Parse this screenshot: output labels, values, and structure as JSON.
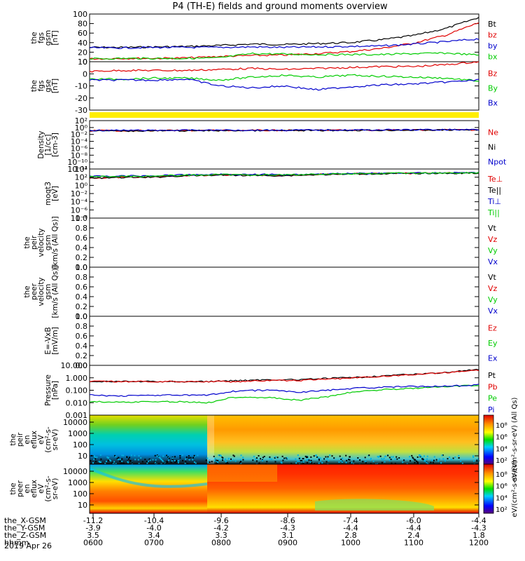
{
  "title": "P4 (TH-E) fields and ground moments overview",
  "date": "2019 Apr 26",
  "colors": {
    "black": "#000000",
    "red": "#e00000",
    "green": "#00cc00",
    "blue": "#0000cc",
    "yellow": "#ffee00"
  },
  "chart_data": [
    {
      "type": "line",
      "panel": "fgs_gsm",
      "ylabel": [
        "the",
        "fgs",
        "gsm",
        "[nT]"
      ],
      "ylim": [
        0,
        100
      ],
      "yticks": [
        "100",
        "80",
        "60",
        "40",
        "20",
        "0"
      ],
      "x": [
        "0600",
        "0630",
        "0700",
        "0730",
        "0800",
        "0830",
        "0900",
        "0930",
        "1000",
        "1030",
        "1100",
        "1130",
        "1200"
      ],
      "series": [
        {
          "name": "Bt",
          "color": "#000000",
          "values": [
            30,
            30,
            31,
            32,
            34,
            37,
            36,
            38,
            40,
            46,
            55,
            70,
            93
          ]
        },
        {
          "name": "bz",
          "color": "#e00000",
          "values": [
            6,
            7,
            7,
            8,
            11,
            13,
            14,
            17,
            21,
            28,
            39,
            56,
            82
          ]
        },
        {
          "name": "by",
          "color": "#0000cc",
          "values": [
            29,
            29,
            30,
            30,
            30,
            31,
            30,
            31,
            32,
            33,
            37,
            42,
            48
          ]
        },
        {
          "name": "bx",
          "color": "#00cc00",
          "values": [
            6,
            7,
            7,
            7,
            8,
            17,
            16,
            15,
            15,
            15,
            17,
            18,
            14
          ]
        }
      ]
    },
    {
      "type": "line",
      "panel": "fgs_gse",
      "ylabel": [
        "the",
        "fgs",
        "gse",
        "[nT]"
      ],
      "ylim": [
        -38,
        12
      ],
      "yticks": [
        "10",
        "0",
        "-10",
        "-20",
        "-30"
      ],
      "x": [
        "0600",
        "0630",
        "0700",
        "0730",
        "0800",
        "0830",
        "0900",
        "0930",
        "1000",
        "1030",
        "1100",
        "1130",
        "1200"
      ],
      "series": [
        {
          "name": "Bz",
          "color": "#e00000",
          "values": [
            2,
            3,
            3,
            3,
            4,
            5,
            4,
            5,
            6,
            7,
            7,
            9,
            12
          ]
        },
        {
          "name": "By",
          "color": "#00cc00",
          "values": [
            -6,
            -6,
            -5,
            -5,
            -7,
            -4,
            -2,
            -4,
            -2,
            -3,
            -4,
            -5,
            -8
          ]
        },
        {
          "name": "Bx",
          "color": "#0000cc",
          "values": [
            -7,
            -7,
            -7,
            -6,
            -13,
            -15,
            -13,
            -17,
            -14,
            -12,
            -11,
            -9,
            -7
          ]
        }
      ]
    },
    {
      "type": "line",
      "panel": "density",
      "scale": "log",
      "ylabel": [
        "Density",
        "[1/cc]",
        "[cm-3]"
      ],
      "yticks": [
        "10²",
        "10⁰",
        "10⁻²",
        "10⁻⁴",
        "10⁻⁶",
        "10⁻⁸",
        "10⁻¹⁰",
        "10⁻¹²"
      ],
      "ylim": [
        1e-13,
        1000.0
      ],
      "x": [
        "0600",
        "0700",
        "0800",
        "0900",
        "1000",
        "1100",
        "1200"
      ],
      "series": [
        {
          "name": "Ne",
          "color": "#e00000",
          "values": [
            0.5,
            0.5,
            0.6,
            0.6,
            0.7,
            0.8,
            1.0
          ]
        },
        {
          "name": "Ni",
          "color": "#000000",
          "values": [
            0.4,
            0.4,
            0.5,
            0.5,
            0.6,
            0.7,
            0.9
          ]
        },
        {
          "name": "Npot",
          "color": "#0000cc",
          "values": [
            0.6,
            0.6,
            0.7,
            0.7,
            0.8,
            0.9,
            1.1
          ]
        }
      ]
    },
    {
      "type": "line",
      "panel": "temperature",
      "scale": "log",
      "ylabel": [
        "moqt3",
        "[eV]"
      ],
      "yticks": [
        "10⁴",
        "10²",
        "10⁰",
        "10⁻²",
        "10⁻⁴",
        "10⁻⁶",
        "10⁻⁸"
      ],
      "ylim": [
        1e-09,
        100000.0
      ],
      "x": [
        "0600",
        "0700",
        "0800",
        "0900",
        "1000",
        "1100",
        "1200"
      ],
      "series": [
        {
          "name": "Te⊥",
          "color": "#e00000",
          "values": [
            300,
            500,
            2000,
            1500,
            4000,
            6000,
            8000
          ]
        },
        {
          "name": "Te||",
          "color": "#000000",
          "values": [
            250,
            450,
            1800,
            1200,
            3500,
            5500,
            7000
          ]
        },
        {
          "name": "Ti⊥",
          "color": "#0000cc",
          "values": [
            800,
            1200,
            3000,
            2500,
            5000,
            7000,
            9000
          ]
        },
        {
          "name": "Ti||",
          "color": "#00cc00",
          "values": [
            600,
            1000,
            2500,
            2000,
            4500,
            6500,
            8500
          ]
        }
      ]
    },
    {
      "type": "line",
      "panel": "peir_velocity",
      "ylabel": [
        "the",
        "peir",
        "velocity",
        "gsm",
        "[km/s (All Qs)]"
      ],
      "ylim": [
        0,
        1
      ],
      "yticks": [
        "1.0",
        "0.8",
        "0.6",
        "0.4",
        "0.2",
        "0.0"
      ],
      "series": [
        {
          "name": "Vt",
          "color": "#000000",
          "values": []
        },
        {
          "name": "Vz",
          "color": "#e00000",
          "values": []
        },
        {
          "name": "Vy",
          "color": "#00cc00",
          "values": []
        },
        {
          "name": "Vx",
          "color": "#0000cc",
          "values": []
        }
      ]
    },
    {
      "type": "line",
      "panel": "peer_velocity",
      "ylabel": [
        "the",
        "peer",
        "velocity",
        "gsm",
        "[km/s (All Qs)]"
      ],
      "ylim": [
        0,
        1
      ],
      "yticks": [
        "1.0",
        "0.8",
        "0.6",
        "0.4",
        "0.2",
        "0.0"
      ],
      "series": [
        {
          "name": "Vt",
          "color": "#000000",
          "values": []
        },
        {
          "name": "Vz",
          "color": "#e00000",
          "values": []
        },
        {
          "name": "Vy",
          "color": "#00cc00",
          "values": []
        },
        {
          "name": "Vx",
          "color": "#0000cc",
          "values": []
        }
      ]
    },
    {
      "type": "line",
      "panel": "e_field",
      "ylabel": [
        "E=-VxB",
        "[mV/m]"
      ],
      "ylim": [
        0,
        1
      ],
      "yticks": [
        "1.0",
        "0.8",
        "0.6",
        "0.4",
        "0.2",
        "0.0"
      ],
      "series": [
        {
          "name": "Ez",
          "color": "#e00000",
          "values": []
        },
        {
          "name": "Ey",
          "color": "#00cc00",
          "values": []
        },
        {
          "name": "Ex",
          "color": "#0000cc",
          "values": []
        }
      ]
    },
    {
      "type": "line",
      "panel": "pressure",
      "scale": "log",
      "ylabel": [
        "Pressure",
        "[nPa]"
      ],
      "yticks": [
        "10.000",
        "1.000",
        "0.100",
        "0.010",
        "0.001"
      ],
      "ylim": [
        0.001,
        10
      ],
      "x": [
        "0600",
        "0630",
        "0700",
        "0730",
        "0745",
        "0800",
        "0830",
        "0900",
        "0930",
        "1000",
        "1030",
        "1100",
        "1130",
        "1200"
      ],
      "series": [
        {
          "name": "Pt",
          "color": "#000000",
          "values": [
            0.5,
            0.5,
            0.5,
            0.5,
            0.5,
            0.6,
            0.7,
            0.7,
            0.9,
            1.1,
            1.5,
            2.0,
            2.8,
            4.5
          ]
        },
        {
          "name": "Pb",
          "color": "#e00000",
          "values": [
            0.5,
            0.5,
            0.5,
            0.5,
            0.5,
            0.5,
            0.6,
            0.6,
            0.8,
            1.0,
            1.4,
            1.9,
            2.7,
            4.2
          ]
        },
        {
          "name": "Pe",
          "color": "#00cc00",
          "values": [
            0.012,
            0.011,
            0.012,
            0.012,
            0.01,
            0.03,
            0.025,
            0.015,
            0.03,
            0.08,
            0.12,
            0.15,
            0.2,
            0.25
          ]
        },
        {
          "name": "Pi",
          "color": "#0000cc",
          "values": [
            0.04,
            0.035,
            0.04,
            0.04,
            0.04,
            0.09,
            0.1,
            0.07,
            0.1,
            0.15,
            0.18,
            0.2,
            0.22,
            0.28
          ]
        }
      ]
    },
    {
      "type": "heatmap",
      "panel": "peir_eflux",
      "ylabel": [
        "the",
        "peir",
        "en",
        "eflux",
        "eV",
        "(cm²-s-",
        "sr-eV)"
      ],
      "scale": "log",
      "ylim": [
        5,
        30000
      ],
      "yticks": [
        "10000",
        "1000",
        "100",
        "10"
      ],
      "colorbar_label": "eV/(cm²-s-sr-eV) (All Qs)",
      "colorbar_ticks": [
        "10⁸",
        "10⁶",
        "10⁴",
        "10²"
      ]
    },
    {
      "type": "heatmap",
      "panel": "peer_eflux",
      "ylabel": [
        "the",
        "peer",
        "en",
        "eflux",
        "eV",
        "(cm²-s-",
        "sr-eV)"
      ],
      "scale": "log",
      "ylim": [
        5,
        30000
      ],
      "yticks": [
        "10000",
        "1000",
        "100",
        "10"
      ],
      "colorbar_label": "eV/(cm²-s-sr-eV)",
      "colorbar_ticks": [
        "10⁸",
        "10⁶",
        "10⁴",
        "10²"
      ]
    }
  ],
  "x_axis": {
    "rows": [
      {
        "label": "the_X-GSM",
        "values": [
          "-11.2",
          "-10.4",
          "-9.6",
          "-8.6",
          "-7.4",
          "-6.0",
          "-4.4"
        ]
      },
      {
        "label": "the_Y-GSM",
        "values": [
          "-3.9",
          "-4.0",
          "-4.2",
          "-4.3",
          "-4.4",
          "-4.4",
          "-4.3"
        ]
      },
      {
        "label": "the_Z-GSM",
        "values": [
          "3.5",
          "3.4",
          "3.3",
          "3.1",
          "2.8",
          "2.4",
          "1.8"
        ]
      },
      {
        "label": "hhmm",
        "values": [
          "0600",
          "0700",
          "0800",
          "0900",
          "1000",
          "1100",
          "1200"
        ]
      }
    ]
  }
}
